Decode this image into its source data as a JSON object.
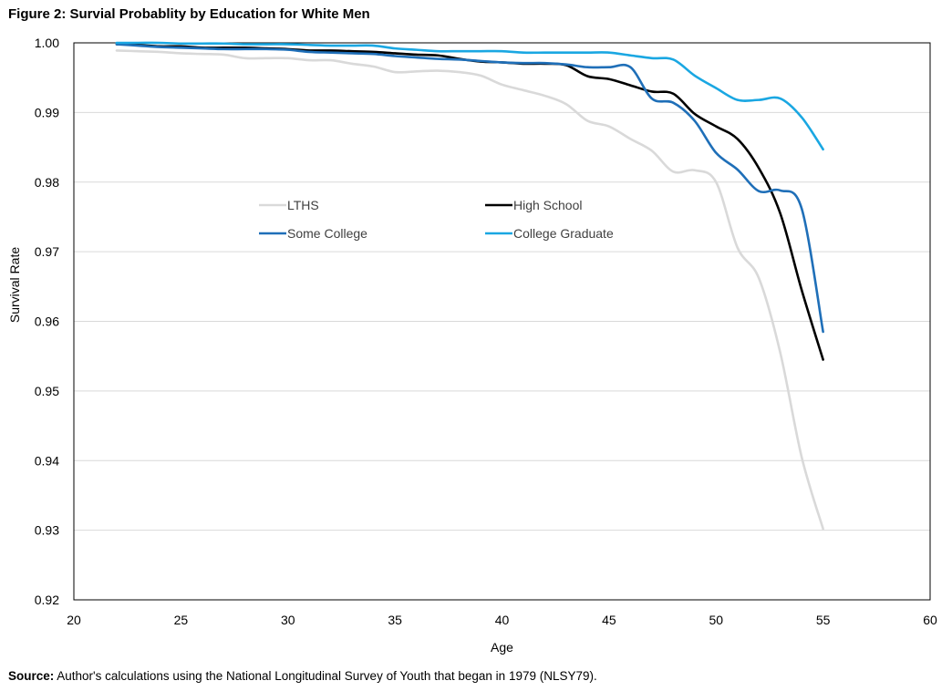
{
  "title": "Figure 2: Survial Probablity by Education for White Men",
  "source": {
    "label": "Source:",
    "text": " Author's calculations using the National Longitudinal Survey of Youth that began in 1979  (NLSY79)."
  },
  "chart_data": {
    "type": "line",
    "xlabel": "Age",
    "ylabel": "Survival Rate",
    "xlim": [
      20,
      60
    ],
    "ylim": [
      0.92,
      1.0
    ],
    "xticks": [
      20,
      25,
      30,
      35,
      40,
      45,
      50,
      55,
      60
    ],
    "xtick_labels": [
      "20",
      "25",
      "30",
      "35",
      "40",
      "45",
      "50",
      "55",
      "60"
    ],
    "yticks": [
      0.92,
      0.93,
      0.94,
      0.95,
      0.96,
      0.97,
      0.98,
      0.99,
      1.0
    ],
    "ytick_labels": [
      "0.92",
      "0.93",
      "0.94",
      "0.95",
      "0.96",
      "0.97",
      "0.98",
      "0.99",
      "1.00"
    ],
    "grid": "horizontal",
    "legend_position": "center-upper",
    "series": [
      {
        "name": "LTHS",
        "color": "#d9d9d9",
        "x": [
          22,
          23,
          24,
          25,
          26,
          27,
          28,
          29,
          30,
          31,
          32,
          33,
          34,
          35,
          36,
          37,
          38,
          39,
          40,
          41,
          42,
          43,
          44,
          45,
          46,
          47,
          48,
          49,
          50,
          51,
          52,
          53,
          54,
          55
        ],
        "y": [
          0.9989,
          0.9988,
          0.9987,
          0.9985,
          0.9984,
          0.9983,
          0.9978,
          0.9978,
          0.9978,
          0.9975,
          0.9975,
          0.997,
          0.9966,
          0.9958,
          0.9959,
          0.996,
          0.9958,
          0.9953,
          0.994,
          0.9932,
          0.9924,
          0.9912,
          0.9888,
          0.988,
          0.9862,
          0.9845,
          0.9815,
          0.9817,
          0.98,
          0.9706,
          0.9662,
          0.9555,
          0.9405,
          0.9302
        ]
      },
      {
        "name": "High School",
        "color": "#000000",
        "x": [
          22,
          23,
          24,
          25,
          26,
          27,
          28,
          29,
          30,
          31,
          32,
          33,
          34,
          35,
          36,
          37,
          38,
          39,
          40,
          41,
          42,
          43,
          44,
          45,
          46,
          47,
          48,
          49,
          50,
          51,
          52,
          53,
          54,
          55
        ],
        "y": [
          0.9998,
          0.9997,
          0.9995,
          0.9995,
          0.9993,
          0.9993,
          0.9993,
          0.9992,
          0.9991,
          0.9989,
          0.9989,
          0.9988,
          0.9987,
          0.9985,
          0.9983,
          0.9982,
          0.9977,
          0.9973,
          0.9972,
          0.997,
          0.997,
          0.9968,
          0.9952,
          0.9948,
          0.9939,
          0.993,
          0.9927,
          0.9898,
          0.988,
          0.9862,
          0.982,
          0.9755,
          0.9645,
          0.9545
        ]
      },
      {
        "name": "Some College",
        "color": "#1f6fb8",
        "x": [
          22,
          23,
          24,
          25,
          26,
          27,
          28,
          29,
          30,
          31,
          32,
          33,
          34,
          35,
          36,
          37,
          38,
          39,
          40,
          41,
          42,
          43,
          44,
          45,
          46,
          47,
          48,
          49,
          50,
          51,
          52,
          53,
          54,
          55
        ],
        "y": [
          0.9998,
          0.9996,
          0.9994,
          0.9993,
          0.9992,
          0.9991,
          0.9991,
          0.9991,
          0.999,
          0.9987,
          0.9986,
          0.9985,
          0.9984,
          0.9981,
          0.9979,
          0.9977,
          0.9976,
          0.9974,
          0.9972,
          0.9971,
          0.9971,
          0.9969,
          0.9965,
          0.9965,
          0.9965,
          0.992,
          0.9914,
          0.9888,
          0.9842,
          0.9818,
          0.9787,
          0.9788,
          0.9762,
          0.9585
        ]
      },
      {
        "name": "College Graduate",
        "color": "#1aa7e2",
        "x": [
          22,
          23,
          24,
          25,
          26,
          27,
          28,
          29,
          30,
          31,
          32,
          33,
          34,
          35,
          36,
          37,
          38,
          39,
          40,
          41,
          42,
          43,
          44,
          45,
          46,
          47,
          48,
          49,
          50,
          51,
          52,
          53,
          54,
          55
        ],
        "y": [
          1.0,
          1.0,
          1.0,
          0.9999,
          0.9999,
          0.9999,
          0.9998,
          0.9998,
          0.9998,
          0.9997,
          0.9996,
          0.9996,
          0.9996,
          0.9992,
          0.999,
          0.9988,
          0.9988,
          0.9988,
          0.9988,
          0.9986,
          0.9986,
          0.9986,
          0.9986,
          0.9986,
          0.9982,
          0.9978,
          0.9976,
          0.9953,
          0.9935,
          0.9918,
          0.9918,
          0.992,
          0.9893,
          0.9847
        ]
      }
    ]
  }
}
